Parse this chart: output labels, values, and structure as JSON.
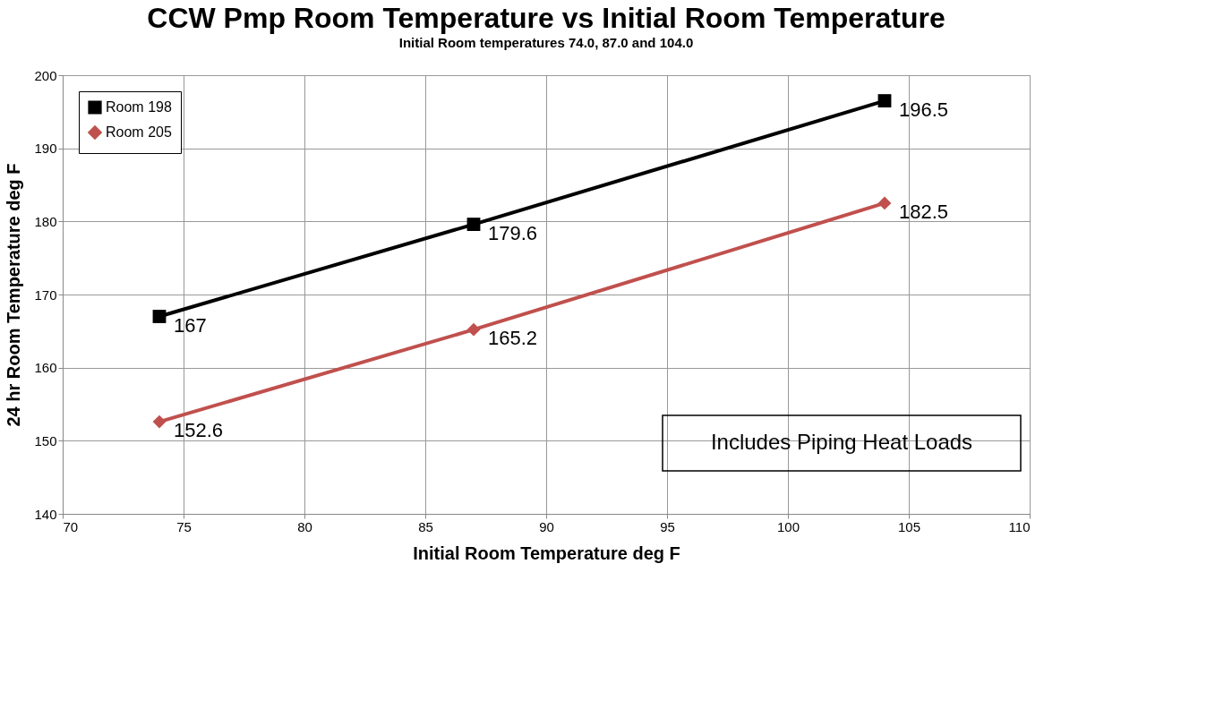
{
  "chart_data": {
    "type": "line",
    "title": "CCW Pmp Room Temperature vs Initial Room Temperature",
    "subtitle": "Initial Room temperatures 74.0,  87.0 and 104.0",
    "xlabel": "Initial Room Temperature deg F",
    "ylabel": "24 hr Room Temperature deg F",
    "x": [
      74,
      87,
      104
    ],
    "series": [
      {
        "name": "Room 198",
        "color": "#000000",
        "marker": "square",
        "values": [
          167,
          179.6,
          196.5
        ]
      },
      {
        "name": "Room 205",
        "color": "#c0504d",
        "marker": "diamond",
        "values": [
          152.6,
          165.2,
          182.5
        ]
      }
    ],
    "xlim": [
      70,
      110
    ],
    "xticks": [
      70,
      75,
      80,
      85,
      90,
      95,
      100,
      105,
      110
    ],
    "ylim": [
      140,
      200
    ],
    "yticks": [
      140,
      150,
      160,
      170,
      180,
      190,
      200
    ],
    "grid": true,
    "legend": "top left",
    "data_labels": true,
    "line_style": "solid",
    "annotations": [
      "Includes Piping Heat Loads"
    ]
  }
}
